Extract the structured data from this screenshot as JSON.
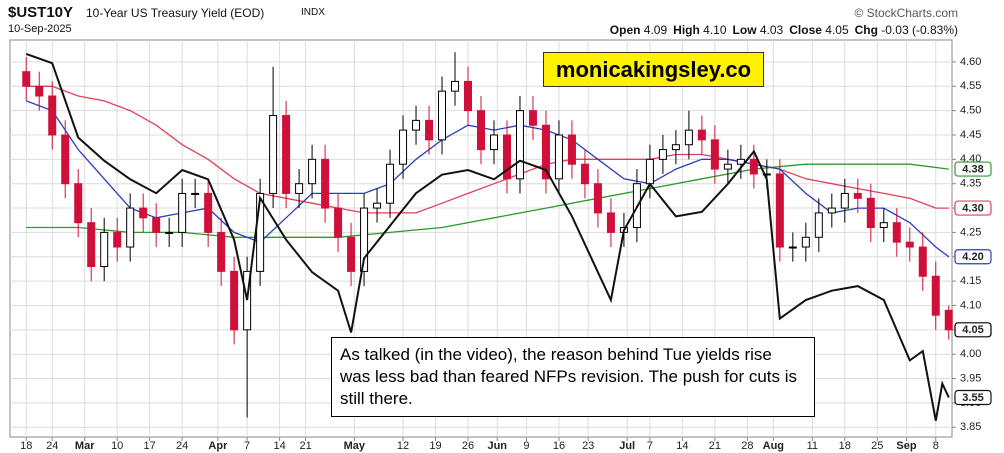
{
  "chart_data": {
    "type": "candlestick",
    "title": "$UST10Y",
    "subtitle": "10-Year US Treasury Yield (EOD)",
    "exchange": "INDX",
    "date": "10-Sep-2025",
    "source": "© StockCharts.com",
    "quote": [
      {
        "label": "Open",
        "value": "4.09"
      },
      {
        "label": "High",
        "value": "4.10"
      },
      {
        "label": "Low",
        "value": "4.03"
      },
      {
        "label": "Close",
        "value": "4.05"
      },
      {
        "label": "Chg",
        "value": "-0.03 (-0.83%)"
      }
    ],
    "watermark": "monicakingsley.co",
    "annotation": "As talked (in the video), the reason behind Tue yields rise was less bad than feared NFPs revision. The push for cuts is still there.",
    "xlim": [
      -2.5,
      142.5
    ],
    "xticks": [
      {
        "value": 0,
        "label": "18"
      },
      {
        "value": 4,
        "label": "24"
      },
      {
        "value": 9,
        "label": "Mar"
      },
      {
        "value": 14,
        "label": "10"
      },
      {
        "value": 19,
        "label": "17"
      },
      {
        "value": 24,
        "label": "24"
      },
      {
        "value": 29.5,
        "label": "Apr"
      },
      {
        "value": 34,
        "label": "7"
      },
      {
        "value": 39,
        "label": "14"
      },
      {
        "value": 43,
        "label": "21"
      },
      {
        "value": 50.5,
        "label": "May"
      },
      {
        "value": 58,
        "label": "12"
      },
      {
        "value": 63,
        "label": "19"
      },
      {
        "value": 68,
        "label": "26"
      },
      {
        "value": 72.5,
        "label": "Jun"
      },
      {
        "value": 77,
        "label": "9"
      },
      {
        "value": 82,
        "label": "16"
      },
      {
        "value": 86.5,
        "label": "23"
      },
      {
        "value": 92.5,
        "label": "Jul"
      },
      {
        "value": 96,
        "label": "7"
      },
      {
        "value": 101,
        "label": "14"
      },
      {
        "value": 106,
        "label": "21"
      },
      {
        "value": 111,
        "label": "28"
      },
      {
        "value": 115,
        "label": "Aug"
      },
      {
        "value": 121,
        "label": "11"
      },
      {
        "value": 126,
        "label": "18"
      },
      {
        "value": 131,
        "label": "25"
      },
      {
        "value": 135.5,
        "label": "Sep"
      },
      {
        "value": 140,
        "label": "8"
      }
    ],
    "ylim": [
      3.83,
      4.645
    ],
    "yticks": [
      3.85,
      {
        "value": 3.9,
        "label": "3.90"
      },
      3.95,
      {
        "value": 4.0,
        "label": "4.00"
      },
      4.05,
      {
        "value": 4.1,
        "label": "4.10"
      },
      4.15,
      {
        "value": 4.2,
        "label": "4.20"
      },
      4.25,
      {
        "value": 4.3,
        "label": "4.30"
      },
      4.35,
      {
        "value": 4.4,
        "label": "4.40"
      },
      4.45,
      {
        "value": 4.5,
        "label": "4.50"
      },
      4.55,
      {
        "value": 4.6,
        "label": "4.60"
      }
    ],
    "y2lim": [
      3.465,
      4.32
    ],
    "grid": true,
    "candles": {
      "up_color": "#000000",
      "down_color": "#d0103a",
      "last_label": "4.05",
      "x": [
        0,
        2,
        4,
        6,
        8,
        10,
        12,
        14,
        16,
        18,
        20,
        22,
        24,
        26,
        28,
        30,
        32,
        34,
        36,
        38,
        40,
        42,
        44,
        46,
        48,
        50,
        52,
        54,
        56,
        58,
        60,
        62,
        64,
        66,
        68,
        70,
        72,
        74,
        76,
        78,
        80,
        82,
        84,
        86,
        88,
        90,
        92,
        94,
        96,
        98,
        100,
        102,
        104,
        106,
        108,
        110,
        112,
        114,
        116,
        118,
        120,
        122,
        124,
        126,
        128,
        130,
        132,
        134,
        136,
        138,
        140,
        142
      ],
      "open": [
        4.58,
        4.55,
        4.53,
        4.45,
        4.35,
        4.27,
        4.18,
        4.25,
        4.22,
        4.3,
        4.28,
        4.25,
        4.25,
        4.33,
        4.33,
        4.25,
        4.17,
        4.05,
        4.17,
        4.33,
        4.49,
        4.33,
        4.35,
        4.4,
        4.3,
        4.24,
        4.17,
        4.3,
        4.31,
        4.39,
        4.46,
        4.48,
        4.44,
        4.54,
        4.56,
        4.5,
        4.42,
        4.45,
        4.36,
        4.5,
        4.47,
        4.36,
        4.45,
        4.39,
        4.35,
        4.29,
        4.25,
        4.26,
        4.35,
        4.4,
        4.42,
        4.43,
        4.46,
        4.44,
        4.38,
        4.39,
        4.4,
        4.37,
        4.37,
        4.22,
        4.22,
        4.24,
        4.29,
        4.3,
        4.33,
        4.32,
        4.26,
        4.27,
        4.23,
        4.22,
        4.16,
        4.09
      ],
      "high": [
        4.61,
        4.58,
        4.56,
        4.48,
        4.38,
        4.3,
        4.28,
        4.28,
        4.33,
        4.33,
        4.31,
        4.28,
        4.36,
        4.36,
        4.36,
        4.28,
        4.2,
        4.2,
        4.36,
        4.59,
        4.52,
        4.38,
        4.43,
        4.43,
        4.33,
        4.27,
        4.33,
        4.34,
        4.42,
        4.49,
        4.51,
        4.51,
        4.57,
        4.62,
        4.59,
        4.53,
        4.48,
        4.48,
        4.53,
        4.53,
        4.5,
        4.48,
        4.48,
        4.42,
        4.38,
        4.32,
        4.29,
        4.38,
        4.43,
        4.45,
        4.46,
        4.5,
        4.49,
        4.47,
        4.42,
        4.43,
        4.43,
        4.4,
        4.4,
        4.25,
        4.27,
        4.32,
        4.33,
        4.36,
        4.36,
        4.35,
        4.3,
        4.3,
        4.26,
        4.25,
        4.19,
        4.1
      ],
      "low": [
        4.52,
        4.5,
        4.42,
        4.32,
        4.24,
        4.15,
        4.15,
        4.19,
        4.19,
        4.25,
        4.22,
        4.22,
        4.22,
        4.3,
        4.22,
        4.14,
        4.02,
        3.87,
        4.14,
        4.3,
        4.3,
        4.3,
        4.32,
        4.27,
        4.21,
        4.14,
        4.14,
        4.27,
        4.28,
        4.36,
        4.43,
        4.41,
        4.41,
        4.51,
        4.47,
        4.39,
        4.39,
        4.33,
        4.33,
        4.44,
        4.33,
        4.33,
        4.36,
        4.32,
        4.26,
        4.22,
        4.22,
        4.23,
        4.32,
        4.37,
        4.39,
        4.4,
        4.41,
        4.35,
        4.35,
        4.36,
        4.34,
        4.34,
        4.19,
        4.19,
        4.19,
        4.21,
        4.26,
        4.27,
        4.29,
        4.23,
        4.23,
        4.2,
        4.19,
        4.13,
        4.05,
        4.03
      ],
      "close": [
        4.55,
        4.53,
        4.45,
        4.35,
        4.27,
        4.18,
        4.25,
        4.22,
        4.3,
        4.28,
        4.25,
        4.25,
        4.33,
        4.33,
        4.25,
        4.17,
        4.05,
        4.17,
        4.33,
        4.49,
        4.33,
        4.35,
        4.4,
        4.3,
        4.24,
        4.17,
        4.3,
        4.31,
        4.39,
        4.46,
        4.48,
        4.44,
        4.54,
        4.56,
        4.5,
        4.42,
        4.45,
        4.36,
        4.5,
        4.47,
        4.36,
        4.45,
        4.39,
        4.35,
        4.29,
        4.25,
        4.26,
        4.35,
        4.4,
        4.42,
        4.43,
        4.46,
        4.44,
        4.38,
        4.39,
        4.4,
        4.37,
        4.37,
        4.22,
        4.22,
        4.24,
        4.29,
        4.3,
        4.33,
        4.32,
        4.26,
        4.27,
        4.23,
        4.22,
        4.16,
        4.08,
        4.05
      ]
    },
    "series": [
      {
        "color": "#2e9a2e",
        "last_label": "4.38",
        "x": [
          0,
          8,
          16,
          24,
          32,
          40,
          48,
          56,
          64,
          72,
          80,
          88,
          96,
          104,
          112,
          120,
          128,
          136,
          142
        ],
        "values": [
          4.26,
          4.26,
          4.25,
          4.25,
          4.24,
          4.24,
          4.24,
          4.25,
          4.26,
          4.28,
          4.3,
          4.32,
          4.34,
          4.36,
          4.38,
          4.39,
          4.39,
          4.39,
          4.38
        ]
      },
      {
        "color": "#e0405a",
        "last_label": "4.30",
        "x": [
          0,
          4,
          8,
          12,
          16,
          20,
          24,
          28,
          32,
          36,
          40,
          44,
          48,
          52,
          56,
          60,
          64,
          68,
          72,
          76,
          80,
          84,
          88,
          92,
          96,
          100,
          104,
          108,
          112,
          116,
          120,
          124,
          128,
          132,
          136,
          140,
          142
        ],
        "values": [
          4.55,
          4.55,
          4.53,
          4.52,
          4.5,
          4.47,
          4.43,
          4.4,
          4.36,
          4.33,
          4.32,
          4.31,
          4.3,
          4.29,
          4.29,
          4.29,
          4.31,
          4.33,
          4.35,
          4.37,
          4.39,
          4.4,
          4.4,
          4.4,
          4.4,
          4.41,
          4.41,
          4.4,
          4.39,
          4.38,
          4.36,
          4.35,
          4.34,
          4.33,
          4.32,
          4.3,
          4.3
        ]
      },
      {
        "color": "#2b3fb8",
        "last_label": "4.20",
        "x": [
          0,
          4,
          8,
          12,
          16,
          20,
          24,
          28,
          32,
          36,
          40,
          44,
          48,
          52,
          56,
          60,
          64,
          68,
          72,
          76,
          80,
          84,
          88,
          92,
          96,
          100,
          104,
          108,
          112,
          116,
          120,
          124,
          128,
          132,
          136,
          140,
          142
        ],
        "values": [
          4.52,
          4.5,
          4.42,
          4.36,
          4.3,
          4.28,
          4.29,
          4.3,
          4.25,
          4.23,
          4.28,
          4.33,
          4.33,
          4.33,
          4.35,
          4.4,
          4.44,
          4.47,
          4.46,
          4.47,
          4.46,
          4.44,
          4.4,
          4.36,
          4.35,
          4.38,
          4.4,
          4.4,
          4.39,
          4.38,
          4.33,
          4.29,
          4.3,
          4.3,
          4.27,
          4.22,
          4.2
        ]
      },
      {
        "color": "#111111",
        "axis": "y2",
        "last_label": "3.55",
        "x": [
          0,
          4,
          8,
          12,
          16,
          20,
          24,
          28,
          32,
          34,
          36,
          40,
          44,
          48,
          50,
          52,
          56,
          60,
          64,
          68,
          72,
          76,
          80,
          84,
          88,
          90,
          92,
          96,
          100,
          104,
          108,
          112,
          114,
          116,
          120,
          124,
          128,
          132,
          136,
          138,
          140,
          141,
          142
        ],
        "values": [
          4.29,
          4.27,
          4.11,
          4.06,
          4.02,
          3.99,
          4.04,
          4.02,
          3.89,
          3.76,
          3.98,
          3.89,
          3.82,
          3.78,
          3.69,
          3.85,
          3.92,
          3.99,
          4.03,
          4.04,
          4.02,
          4.06,
          4.04,
          3.94,
          3.82,
          3.76,
          3.91,
          4.01,
          3.94,
          3.95,
          4.01,
          4.08,
          4.02,
          3.72,
          3.76,
          3.78,
          3.79,
          3.76,
          3.63,
          3.65,
          3.5,
          3.58,
          3.55
        ]
      }
    ]
  }
}
